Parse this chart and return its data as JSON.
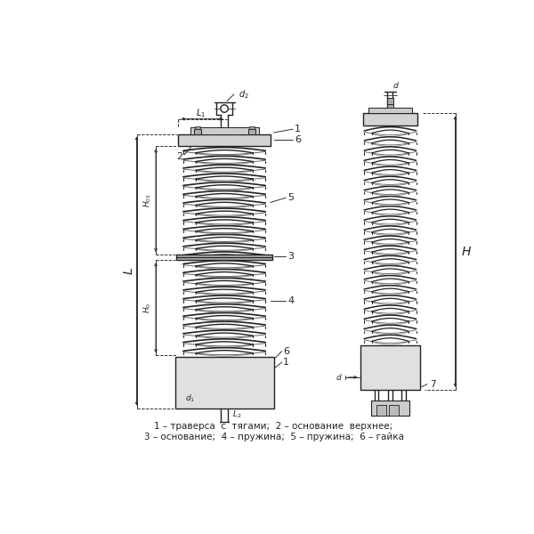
{
  "bg_color": "#ffffff",
  "line_color": "#222222",
  "caption_line1": "1 – траверса  с  тягами;  2 – основание  верхнее;",
  "caption_line2": "3 – основание;  4 – пружина;  5 – пружина;  6 – гайка"
}
